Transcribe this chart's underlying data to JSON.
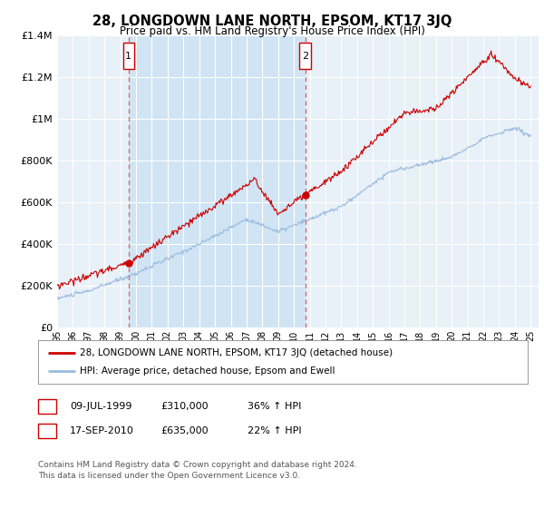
{
  "title": "28, LONGDOWN LANE NORTH, EPSOM, KT17 3JQ",
  "subtitle": "Price paid vs. HM Land Registry's House Price Index (HPI)",
  "ylim": [
    0,
    1400000
  ],
  "yticks": [
    0,
    200000,
    400000,
    600000,
    800000,
    1000000,
    1200000,
    1400000
  ],
  "ytick_labels": [
    "£0",
    "£200K",
    "£400K",
    "£600K",
    "£800K",
    "£1M",
    "£1.2M",
    "£1.4M"
  ],
  "xstart_year": 1995,
  "xend_year": 2025,
  "sale1_x": 1999.52,
  "sale1_price": 310000,
  "sale2_x": 2010.71,
  "sale2_price": 635000,
  "line_color_red": "#cc0000",
  "line_color_blue": "#99bbdd",
  "shade_color": "#ccddef",
  "background_color": "#e8f0f8",
  "grid_color": "#d8e4f0",
  "legend_label_red": "28, LONGDOWN LANE NORTH, EPSOM, KT17 3JQ (detached house)",
  "legend_label_blue": "HPI: Average price, detached house, Epsom and Ewell",
  "footnote": "Contains HM Land Registry data © Crown copyright and database right 2024.\nThis data is licensed under the Open Government Licence v3.0.",
  "table_rows": [
    {
      "num": "1",
      "date": "09-JUL-1999",
      "price": "£310,000",
      "hpi": "36% ↑ HPI"
    },
    {
      "num": "2",
      "date": "17-SEP-2010",
      "price": "£635,000",
      "hpi": "22% ↑ HPI"
    }
  ]
}
